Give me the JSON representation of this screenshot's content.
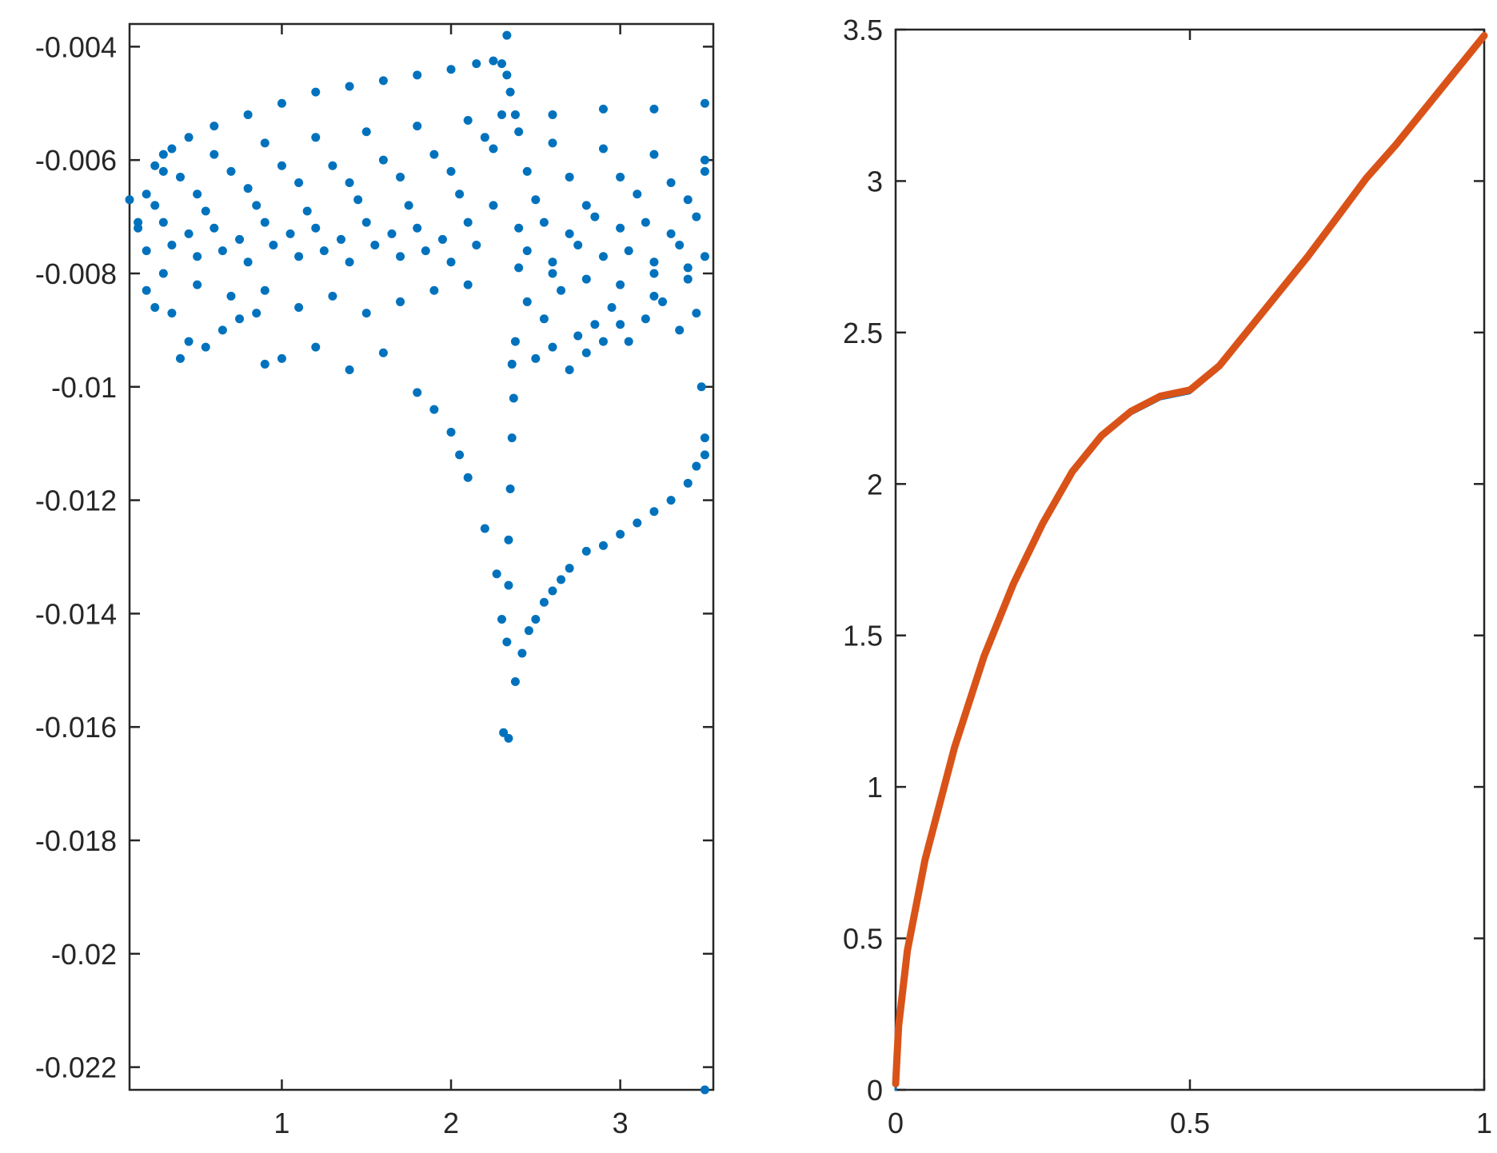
{
  "chart_data": [
    {
      "type": "scatter",
      "title": "",
      "xlabel": "",
      "ylabel": "",
      "xlim": [
        0.1,
        3.55
      ],
      "ylim": [
        -0.0224,
        -0.0036
      ],
      "xticks": [
        "1",
        "2",
        "3"
      ],
      "xtick_values": [
        1,
        2,
        3
      ],
      "yticks": [
        "-0.004",
        "-0.006",
        "-0.008",
        "-0.01",
        "-0.012",
        "-0.014",
        "-0.016",
        "-0.018",
        "-0.02",
        "-0.022"
      ],
      "ytick_values": [
        -0.004,
        -0.006,
        -0.008,
        -0.01,
        -0.012,
        -0.014,
        -0.016,
        -0.018,
        -0.02,
        -0.022
      ],
      "grid": false,
      "series": [
        {
          "color": "#0072BD",
          "points": [
            [
              0.1,
              -0.0067
            ],
            [
              0.15,
              -0.0071
            ],
            [
              0.2,
              -0.0066
            ],
            [
              0.25,
              -0.0061
            ],
            [
              0.3,
              -0.0059
            ],
            [
              0.35,
              -0.0058
            ],
            [
              0.45,
              -0.0056
            ],
            [
              0.6,
              -0.0054
            ],
            [
              0.8,
              -0.0052
            ],
            [
              1.0,
              -0.005
            ],
            [
              1.2,
              -0.0048
            ],
            [
              1.4,
              -0.0047
            ],
            [
              1.6,
              -0.0046
            ],
            [
              1.8,
              -0.0045
            ],
            [
              2.0,
              -0.0044
            ],
            [
              2.15,
              -0.0043
            ],
            [
              2.25,
              -0.00425
            ],
            [
              2.3,
              -0.0043
            ],
            [
              2.33,
              -0.0045
            ],
            [
              2.33,
              -0.0038
            ],
            [
              2.35,
              -0.0048
            ],
            [
              2.38,
              -0.0052
            ],
            [
              2.6,
              -0.0052
            ],
            [
              2.9,
              -0.0051
            ],
            [
              3.2,
              -0.0051
            ],
            [
              3.5,
              -0.005
            ],
            [
              0.3,
              -0.0062
            ],
            [
              0.6,
              -0.0059
            ],
            [
              0.9,
              -0.0057
            ],
            [
              1.2,
              -0.0056
            ],
            [
              1.5,
              -0.0055
            ],
            [
              1.8,
              -0.0054
            ],
            [
              2.1,
              -0.0053
            ],
            [
              2.3,
              -0.0052
            ],
            [
              2.4,
              -0.0055
            ],
            [
              2.6,
              -0.0057
            ],
            [
              2.9,
              -0.0058
            ],
            [
              3.2,
              -0.0059
            ],
            [
              3.5,
              -0.006
            ],
            [
              0.4,
              -0.0063
            ],
            [
              0.7,
              -0.0062
            ],
            [
              1.0,
              -0.0061
            ],
            [
              1.3,
              -0.0061
            ],
            [
              1.6,
              -0.006
            ],
            [
              1.9,
              -0.0059
            ],
            [
              2.2,
              -0.0056
            ],
            [
              0.5,
              -0.0066
            ],
            [
              0.8,
              -0.0065
            ],
            [
              1.1,
              -0.0064
            ],
            [
              1.4,
              -0.0064
            ],
            [
              1.7,
              -0.0063
            ],
            [
              2.0,
              -0.0062
            ],
            [
              2.25,
              -0.0058
            ],
            [
              2.45,
              -0.0062
            ],
            [
              2.7,
              -0.0063
            ],
            [
              3.0,
              -0.0063
            ],
            [
              3.3,
              -0.0064
            ],
            [
              3.5,
              -0.0062
            ],
            [
              0.15,
              -0.0072
            ],
            [
              0.3,
              -0.0071
            ],
            [
              0.45,
              -0.0073
            ],
            [
              0.6,
              -0.0072
            ],
            [
              0.75,
              -0.0074
            ],
            [
              0.9,
              -0.0071
            ],
            [
              1.05,
              -0.0073
            ],
            [
              1.2,
              -0.0072
            ],
            [
              1.35,
              -0.0074
            ],
            [
              1.5,
              -0.0071
            ],
            [
              1.65,
              -0.0073
            ],
            [
              1.8,
              -0.0072
            ],
            [
              1.95,
              -0.0074
            ],
            [
              2.1,
              -0.0071
            ],
            [
              2.25,
              -0.0068
            ],
            [
              2.4,
              -0.0072
            ],
            [
              2.55,
              -0.0071
            ],
            [
              2.7,
              -0.0073
            ],
            [
              2.85,
              -0.007
            ],
            [
              3.0,
              -0.0072
            ],
            [
              3.15,
              -0.0071
            ],
            [
              3.3,
              -0.0073
            ],
            [
              3.45,
              -0.007
            ],
            [
              0.2,
              -0.0076
            ],
            [
              0.35,
              -0.0075
            ],
            [
              0.5,
              -0.0077
            ],
            [
              0.65,
              -0.0076
            ],
            [
              0.8,
              -0.0078
            ],
            [
              0.95,
              -0.0075
            ],
            [
              1.1,
              -0.0077
            ],
            [
              1.25,
              -0.0076
            ],
            [
              1.4,
              -0.0078
            ],
            [
              1.55,
              -0.0075
            ],
            [
              1.7,
              -0.0077
            ],
            [
              1.85,
              -0.0076
            ],
            [
              2.0,
              -0.0078
            ],
            [
              2.15,
              -0.0075
            ],
            [
              2.45,
              -0.0076
            ],
            [
              2.6,
              -0.0078
            ],
            [
              2.75,
              -0.0075
            ],
            [
              2.9,
              -0.0077
            ],
            [
              3.05,
              -0.0076
            ],
            [
              3.2,
              -0.0078
            ],
            [
              3.35,
              -0.0075
            ],
            [
              3.5,
              -0.0077
            ],
            [
              0.25,
              -0.0068
            ],
            [
              0.55,
              -0.0069
            ],
            [
              0.85,
              -0.0068
            ],
            [
              1.15,
              -0.0069
            ],
            [
              1.45,
              -0.0067
            ],
            [
              1.75,
              -0.0068
            ],
            [
              2.05,
              -0.0066
            ],
            [
              2.5,
              -0.0067
            ],
            [
              2.8,
              -0.0068
            ],
            [
              3.1,
              -0.0066
            ],
            [
              3.4,
              -0.0067
            ],
            [
              0.2,
              -0.0083
            ],
            [
              0.25,
              -0.0086
            ],
            [
              0.35,
              -0.0087
            ],
            [
              0.45,
              -0.0092
            ],
            [
              0.55,
              -0.0093
            ],
            [
              0.65,
              -0.009
            ],
            [
              0.75,
              -0.0088
            ],
            [
              0.85,
              -0.0087
            ],
            [
              0.3,
              -0.008
            ],
            [
              0.5,
              -0.0082
            ],
            [
              0.7,
              -0.0084
            ],
            [
              0.9,
              -0.0083
            ],
            [
              1.1,
              -0.0086
            ],
            [
              1.3,
              -0.0084
            ],
            [
              1.5,
              -0.0087
            ],
            [
              1.7,
              -0.0085
            ],
            [
              1.9,
              -0.0083
            ],
            [
              2.1,
              -0.0082
            ],
            [
              0.4,
              -0.0095
            ],
            [
              0.9,
              -0.0096
            ],
            [
              1.0,
              -0.0095
            ],
            [
              1.2,
              -0.0093
            ],
            [
              1.4,
              -0.0097
            ],
            [
              1.6,
              -0.0094
            ],
            [
              1.8,
              -0.0101
            ],
            [
              1.9,
              -0.0104
            ],
            [
              2.0,
              -0.0108
            ],
            [
              2.05,
              -0.0112
            ],
            [
              2.1,
              -0.0116
            ],
            [
              2.2,
              -0.0125
            ],
            [
              2.27,
              -0.0133
            ],
            [
              2.3,
              -0.0141
            ],
            [
              2.31,
              -0.0161
            ],
            [
              2.34,
              -0.0162
            ],
            [
              2.33,
              -0.0145
            ],
            [
              2.34,
              -0.0135
            ],
            [
              2.34,
              -0.0127
            ],
            [
              2.35,
              -0.0118
            ],
            [
              2.36,
              -0.0109
            ],
            [
              2.37,
              -0.0102
            ],
            [
              2.36,
              -0.0096
            ],
            [
              2.38,
              -0.0092
            ],
            [
              2.38,
              -0.0152
            ],
            [
              2.42,
              -0.0147
            ],
            [
              2.46,
              -0.0143
            ],
            [
              2.5,
              -0.0141
            ],
            [
              2.55,
              -0.0138
            ],
            [
              2.6,
              -0.0136
            ],
            [
              2.65,
              -0.0134
            ],
            [
              2.7,
              -0.0132
            ],
            [
              2.8,
              -0.0129
            ],
            [
              2.9,
              -0.0128
            ],
            [
              3.0,
              -0.0126
            ],
            [
              3.1,
              -0.0124
            ],
            [
              3.2,
              -0.0122
            ],
            [
              3.3,
              -0.012
            ],
            [
              3.4,
              -0.0117
            ],
            [
              3.45,
              -0.0114
            ],
            [
              3.5,
              -0.0112
            ],
            [
              3.5,
              -0.0109
            ],
            [
              2.45,
              -0.0085
            ],
            [
              2.55,
              -0.0088
            ],
            [
              2.65,
              -0.0083
            ],
            [
              2.75,
              -0.0091
            ],
            [
              2.85,
              -0.0089
            ],
            [
              2.95,
              -0.0086
            ],
            [
              3.05,
              -0.0092
            ],
            [
              3.15,
              -0.0088
            ],
            [
              3.25,
              -0.0085
            ],
            [
              3.35,
              -0.009
            ],
            [
              3.45,
              -0.0087
            ],
            [
              2.5,
              -0.0095
            ],
            [
              2.6,
              -0.0093
            ],
            [
              2.7,
              -0.0097
            ],
            [
              2.8,
              -0.0094
            ],
            [
              2.9,
              -0.0092
            ],
            [
              3.0,
              -0.0089
            ],
            [
              3.2,
              -0.0084
            ],
            [
              3.4,
              -0.0081
            ],
            [
              3.48,
              -0.01
            ],
            [
              3.5,
              -0.0224
            ],
            [
              2.4,
              -0.0079
            ],
            [
              2.6,
              -0.008
            ],
            [
              2.8,
              -0.0081
            ],
            [
              3.0,
              -0.0082
            ],
            [
              3.2,
              -0.008
            ],
            [
              3.4,
              -0.0079
            ]
          ]
        }
      ]
    },
    {
      "type": "line",
      "title": "",
      "xlabel": "",
      "ylabel": "",
      "xlim": [
        0,
        1
      ],
      "ylim": [
        0,
        3.5
      ],
      "xticks": [
        "0",
        "0.5",
        "1"
      ],
      "xtick_values": [
        0,
        0.5,
        1
      ],
      "yticks": [
        "0",
        "0.5",
        "1",
        "1.5",
        "2",
        "2.5",
        "3",
        "3.5"
      ],
      "ytick_values": [
        0,
        0.5,
        1,
        1.5,
        2,
        2.5,
        3,
        3.5
      ],
      "grid": false,
      "series": [
        {
          "color": "#0072BD",
          "points": [
            [
              0,
              0
            ],
            [
              0.005,
              0.2
            ],
            [
              0.02,
              0.45
            ],
            [
              0.05,
              0.75
            ],
            [
              0.1,
              1.12
            ],
            [
              0.15,
              1.42
            ],
            [
              0.2,
              1.66
            ],
            [
              0.25,
              1.86
            ],
            [
              0.3,
              2.03
            ],
            [
              0.35,
              2.15
            ],
            [
              0.4,
              2.23
            ],
            [
              0.45,
              2.28
            ],
            [
              0.5,
              2.3
            ],
            [
              0.55,
              2.38
            ],
            [
              0.6,
              2.5
            ],
            [
              0.65,
              2.62
            ],
            [
              0.7,
              2.74
            ],
            [
              0.75,
              2.87
            ],
            [
              0.8,
              3.0
            ],
            [
              0.85,
              3.11
            ],
            [
              0.9,
              3.23
            ],
            [
              0.95,
              3.35
            ],
            [
              1.0,
              3.47
            ]
          ]
        },
        {
          "color": "#D95319",
          "points": [
            [
              0,
              0.02
            ],
            [
              0.005,
              0.21
            ],
            [
              0.02,
              0.46
            ],
            [
              0.05,
              0.76
            ],
            [
              0.1,
              1.13
            ],
            [
              0.15,
              1.43
            ],
            [
              0.2,
              1.67
            ],
            [
              0.25,
              1.87
            ],
            [
              0.3,
              2.04
            ],
            [
              0.35,
              2.16
            ],
            [
              0.4,
              2.24
            ],
            [
              0.45,
              2.29
            ],
            [
              0.5,
              2.31
            ],
            [
              0.55,
              2.39
            ],
            [
              0.6,
              2.51
            ],
            [
              0.65,
              2.63
            ],
            [
              0.7,
              2.75
            ],
            [
              0.75,
              2.88
            ],
            [
              0.8,
              3.01
            ],
            [
              0.85,
              3.12
            ],
            [
              0.9,
              3.24
            ],
            [
              0.95,
              3.36
            ],
            [
              1.0,
              3.48
            ]
          ]
        }
      ]
    }
  ]
}
